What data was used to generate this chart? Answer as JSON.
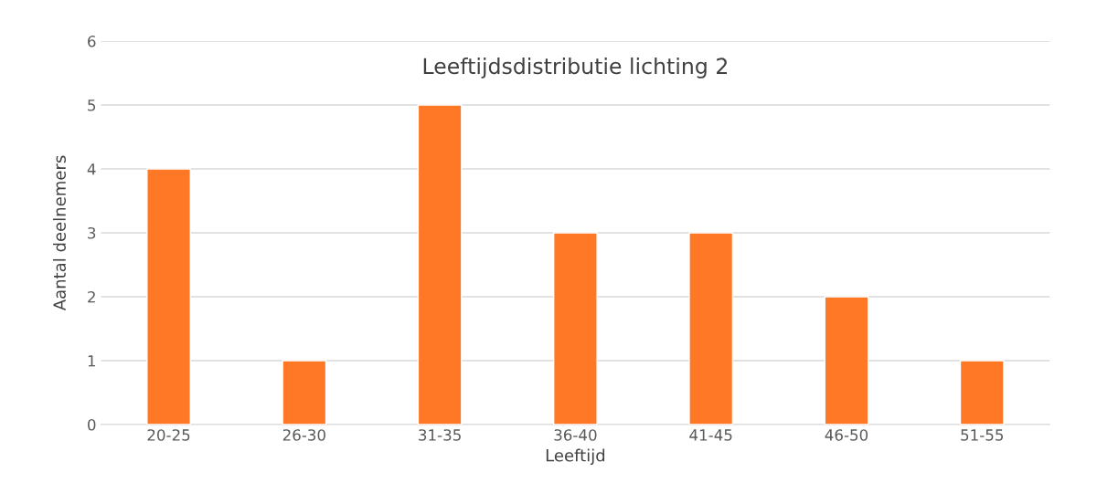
{
  "chart_data": {
    "type": "bar",
    "title": "Leeftijdsdistributie lichting 2",
    "xlabel": "Leeftijd",
    "ylabel": "Aantal deelnemers",
    "categories": [
      "20-25",
      "26-30",
      "31-35",
      "36-40",
      "41-45",
      "46-50",
      "51-55"
    ],
    "values": [
      4,
      1,
      5,
      3,
      3,
      2,
      1
    ],
    "color": "#ff7826",
    "ylim": [
      0,
      6
    ],
    "yticks": [
      0,
      1,
      2,
      3,
      4,
      5,
      6
    ],
    "grid": "y"
  }
}
